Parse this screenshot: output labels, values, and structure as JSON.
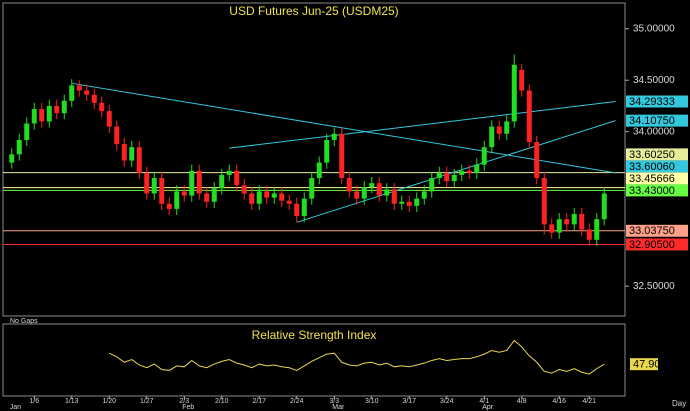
{
  "chart_data": {
    "type": "candlestick",
    "title": "USD Futures Jun-25 (USDM25)",
    "note": "No Gaps",
    "period": "Day",
    "categories": [
      null,
      null,
      null,
      "1/6",
      null,
      null,
      null,
      null,
      "1/13",
      null,
      null,
      null,
      null,
      "1/20",
      null,
      null,
      null,
      null,
      "1/27",
      null,
      null,
      null,
      null,
      "2/3",
      null,
      null,
      null,
      null,
      "2/10",
      null,
      null,
      null,
      null,
      "2/17",
      null,
      null,
      null,
      null,
      "2/24",
      null,
      null,
      null,
      null,
      "3/3",
      null,
      null,
      null,
      null,
      "3/10",
      null,
      null,
      null,
      null,
      "3/17",
      null,
      null,
      null,
      null,
      "3/24",
      null,
      null,
      null,
      null,
      "4/1",
      null,
      null,
      null,
      null,
      "4/8",
      null,
      null,
      null,
      null,
      "4/16",
      null,
      null,
      null,
      "4/21",
      null,
      null
    ],
    "month_labels": [
      {
        "index": 0,
        "label": "Jan"
      },
      {
        "index": 23,
        "label": "Feb"
      },
      {
        "index": 43,
        "label": "Mar"
      },
      {
        "index": 63,
        "label": "Apr"
      }
    ],
    "open": [
      33.7,
      33.78,
      33.92,
      34.08,
      34.22,
      34.1,
      34.25,
      34.18,
      34.3,
      34.45,
      34.4,
      34.36,
      34.28,
      34.2,
      34.05,
      33.88,
      33.72,
      33.85,
      33.6,
      33.4,
      33.55,
      33.3,
      33.25,
      33.42,
      33.38,
      33.62,
      33.4,
      33.32,
      33.45,
      33.58,
      33.62,
      33.48,
      33.4,
      33.3,
      33.42,
      33.36,
      33.4,
      33.33,
      33.3,
      33.18,
      33.35,
      33.55,
      33.7,
      33.92,
      33.98,
      33.55,
      33.42,
      33.35,
      33.46,
      33.5,
      33.38,
      33.44,
      33.3,
      33.32,
      33.28,
      33.35,
      33.42,
      33.55,
      33.6,
      33.52,
      33.58,
      33.62,
      33.6,
      33.68,
      33.85,
      34.05,
      33.98,
      34.1,
      34.6,
      34.4,
      33.9,
      33.55,
      33.1,
      33.02,
      33.15,
      33.1,
      33.2,
      33.05,
      32.95,
      33.15
    ],
    "high": [
      33.84,
      33.98,
      34.14,
      34.28,
      34.28,
      34.31,
      34.31,
      34.36,
      34.51,
      34.5,
      34.46,
      34.42,
      34.34,
      34.26,
      34.11,
      33.94,
      33.91,
      33.91,
      33.66,
      33.61,
      33.61,
      33.36,
      33.48,
      33.48,
      33.68,
      33.68,
      33.46,
      33.51,
      33.64,
      33.68,
      33.68,
      33.54,
      33.46,
      33.48,
      33.48,
      33.46,
      33.46,
      33.39,
      33.36,
      33.41,
      33.61,
      33.76,
      33.98,
      34.04,
      34.04,
      33.61,
      33.48,
      33.52,
      33.56,
      33.56,
      33.5,
      33.5,
      33.38,
      33.38,
      33.41,
      33.48,
      33.61,
      33.66,
      33.66,
      33.64,
      33.68,
      33.68,
      33.74,
      33.91,
      34.11,
      34.11,
      34.16,
      34.75,
      34.66,
      34.46,
      33.96,
      33.61,
      33.16,
      33.21,
      33.21,
      33.26,
      33.26,
      33.11,
      33.21,
      33.46
    ],
    "low": [
      33.64,
      33.72,
      33.86,
      34.02,
      34.04,
      34.04,
      34.12,
      34.12,
      34.24,
      34.34,
      34.3,
      34.22,
      34.14,
      33.99,
      33.82,
      33.66,
      33.66,
      33.54,
      33.34,
      33.34,
      33.24,
      33.19,
      33.19,
      33.32,
      33.32,
      33.34,
      33.26,
      33.26,
      33.39,
      33.52,
      33.42,
      33.34,
      33.24,
      33.24,
      33.3,
      33.3,
      33.27,
      33.24,
      33.12,
      33.12,
      33.29,
      33.49,
      33.64,
      33.86,
      33.49,
      33.36,
      33.29,
      33.29,
      33.4,
      33.32,
      33.32,
      33.24,
      33.24,
      33.22,
      33.22,
      33.29,
      33.36,
      33.49,
      33.46,
      33.46,
      33.52,
      33.54,
      33.54,
      33.62,
      33.79,
      33.92,
      33.92,
      34.04,
      34.34,
      33.84,
      33.49,
      33.0,
      32.96,
      32.96,
      33.04,
      33.04,
      32.99,
      32.89,
      32.89,
      33.09
    ],
    "close": [
      33.78,
      33.92,
      34.08,
      34.22,
      34.1,
      34.25,
      34.18,
      34.3,
      34.45,
      34.4,
      34.36,
      34.28,
      34.2,
      34.05,
      33.88,
      33.72,
      33.85,
      33.6,
      33.4,
      33.55,
      33.3,
      33.25,
      33.42,
      33.38,
      33.62,
      33.4,
      33.32,
      33.45,
      33.58,
      33.62,
      33.48,
      33.4,
      33.3,
      33.42,
      33.36,
      33.4,
      33.33,
      33.3,
      33.18,
      33.35,
      33.55,
      33.7,
      33.92,
      33.98,
      33.55,
      33.42,
      33.35,
      33.46,
      33.5,
      33.38,
      33.44,
      33.3,
      33.32,
      33.28,
      33.35,
      33.42,
      33.55,
      33.6,
      33.52,
      33.58,
      33.62,
      33.6,
      33.68,
      33.85,
      34.05,
      33.98,
      34.1,
      34.65,
      34.4,
      33.9,
      33.55,
      33.1,
      33.02,
      33.15,
      33.1,
      33.2,
      33.05,
      32.95,
      33.15,
      33.4
    ],
    "up_color": "#22dd22",
    "down_color": "#ff2222",
    "ylim": [
      32.21,
      35.25
    ],
    "yticks": [
      {
        "value": 32.5,
        "label": "32.50000"
      },
      {
        "value": 34,
        "label": "34.00000"
      },
      {
        "value": 34.5,
        "label": "34.50000"
      },
      {
        "value": 35,
        "label": "35.00000"
      }
    ],
    "levels": [
      {
        "value": 33.6025,
        "label": "33.60250",
        "color": "#e6ee9c"
      },
      {
        "value": 33.45666,
        "label": "33.45666",
        "color": "#ffffa8"
      },
      {
        "value": 33.43,
        "label": "33.43000",
        "color": "#66ff44"
      },
      {
        "value": 33.0375,
        "label": "33.03750",
        "color": "#ffa08a"
      },
      {
        "value": 32.905,
        "label": "32.90500",
        "color": "#ff2a2a"
      }
    ],
    "trendlines": [
      {
        "x": [
          8,
          80.5
        ],
        "y": [
          34.47,
          33.6006
        ],
        "label": "33.60060",
        "color": "#33c8dc"
      },
      {
        "x": [
          38,
          80.5
        ],
        "y": [
          33.12,
          34.1075
        ],
        "label": "34.10750",
        "color": "#33c8dc"
      },
      {
        "x": [
          29,
          80.5
        ],
        "y": [
          33.84,
          34.29333
        ],
        "label": "34.29333",
        "color": "#33c8dc"
      }
    ],
    "rsi": {
      "name": "Relative Strength Index",
      "color": "#e8d84a",
      "ylim": [
        15,
        90
      ],
      "last_label": "47.90",
      "values": [
        null,
        null,
        null,
        null,
        null,
        null,
        null,
        null,
        null,
        null,
        null,
        null,
        null,
        60,
        56,
        50,
        53,
        47,
        44,
        48,
        42,
        41,
        46,
        45,
        52,
        46,
        44,
        48,
        51,
        53,
        49,
        47,
        44,
        48,
        46,
        47,
        45,
        44,
        41,
        46,
        51,
        55,
        59,
        60,
        50,
        47,
        46,
        49,
        50,
        47,
        49,
        45,
        46,
        45,
        47,
        49,
        52,
        54,
        52,
        53,
        54,
        54,
        56,
        59,
        63,
        61,
        63,
        74,
        67,
        57,
        50,
        40,
        38,
        42,
        40,
        43,
        39,
        37,
        43,
        47.9
      ]
    }
  }
}
